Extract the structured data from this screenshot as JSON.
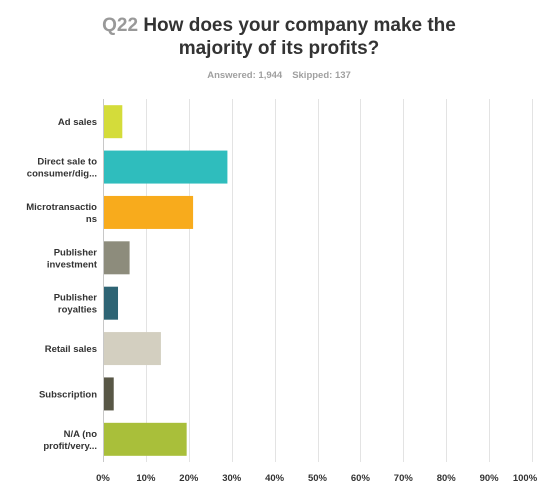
{
  "header": {
    "question_number": "Q22",
    "question_text_line1": "How does your company make the",
    "question_text_line2": "majority of its profits?",
    "answered": "Answered: 1,944",
    "skipped": "Skipped: 137"
  },
  "chart_data": {
    "type": "bar",
    "orientation": "horizontal",
    "categories": [
      "Ad sales",
      "Direct sale to consumer/dig...",
      "Microtransactions",
      "Publisher investment",
      "Publisher royalties",
      "Retail sales",
      "Subscription",
      "N/A (no profit/very..."
    ],
    "category_label_lines": [
      [
        "Ad sales"
      ],
      [
        "Direct sale to",
        "consumer/dig..."
      ],
      [
        "Microtransactio",
        "ns"
      ],
      [
        "Publisher",
        "investment"
      ],
      [
        "Publisher",
        "royalties"
      ],
      [
        "Retail sales"
      ],
      [
        "Subscription"
      ],
      [
        "N/A (no",
        "profit/very..."
      ]
    ],
    "values": [
      4.5,
      29.0,
      21.0,
      6.2,
      3.5,
      13.5,
      2.5,
      19.5
    ],
    "colors": [
      "#d4dc3a",
      "#2fbdbd",
      "#f8ab1c",
      "#8d8c7c",
      "#2e6474",
      "#d3cfc0",
      "#585746",
      "#a9bf3a"
    ],
    "xlim": [
      0,
      100
    ],
    "ticks": [
      "0%",
      "10%",
      "20%",
      "30%",
      "40%",
      "50%",
      "60%",
      "70%",
      "80%",
      "90%",
      "100%"
    ],
    "grid": true,
    "title": "",
    "xlabel": "",
    "ylabel": ""
  }
}
